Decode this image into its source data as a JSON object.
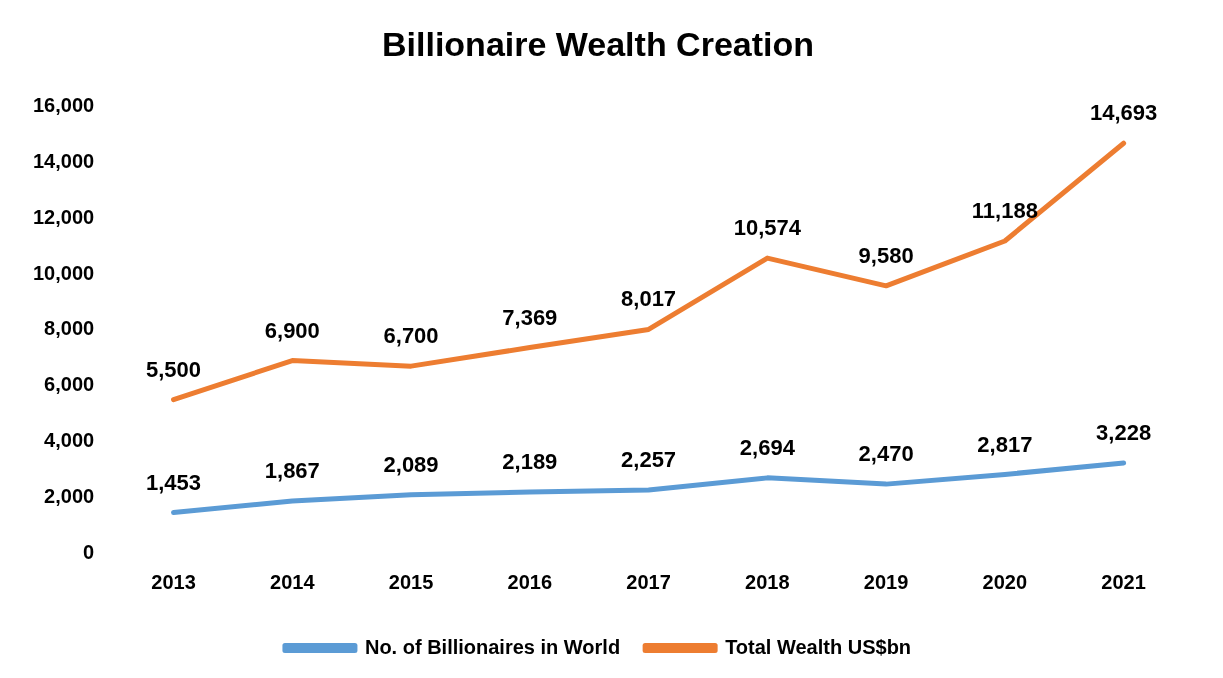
{
  "chart_data": {
    "type": "line",
    "title": "Billionaire Wealth Creation",
    "categories": [
      "2013",
      "2014",
      "2015",
      "2016",
      "2017",
      "2018",
      "2019",
      "2020",
      "2021"
    ],
    "series": [
      {
        "name": "No. of Billionaires in World",
        "color": "#5b9bd5",
        "values": [
          1453,
          1867,
          2089,
          2189,
          2257,
          2694,
          2470,
          2817,
          3228
        ],
        "value_labels": [
          "1,453",
          "1,867",
          "2,089",
          "2,189",
          "2,257",
          "2,694",
          "2,470",
          "2,817",
          "3,228"
        ]
      },
      {
        "name": "Total Wealth US$bn",
        "color": "#ed7d31",
        "values": [
          5500,
          6900,
          6700,
          7369,
          8017,
          10574,
          9580,
          11188,
          14693
        ],
        "value_labels": [
          "5,500",
          "6,900",
          "6,700",
          "7,369",
          "8,017",
          "10,574",
          "9,580",
          "11,188",
          "14,693"
        ]
      }
    ],
    "ylim": [
      0,
      16000
    ],
    "yticks": [
      0,
      {
        "value": 2000,
        "label": "2,000"
      },
      {
        "value": 4000,
        "label": "4,000"
      },
      {
        "value": 6000,
        "label": "6,000"
      },
      {
        "value": 8000,
        "label": "8,000"
      },
      {
        "value": 10000,
        "label": "10,000"
      },
      {
        "value": 12000,
        "label": "12,000"
      },
      {
        "value": 14000,
        "label": "14,000"
      },
      {
        "value": 16000,
        "label": "16,000"
      }
    ],
    "grid": false,
    "legend": "bottom",
    "marker": "none",
    "line_style": "solid"
  }
}
